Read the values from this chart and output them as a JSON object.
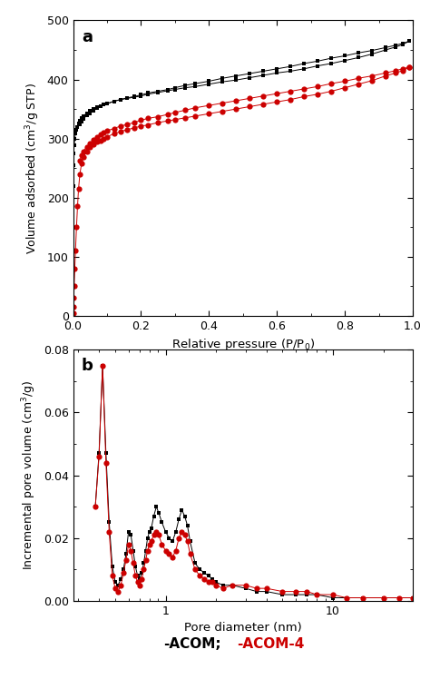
{
  "panel_a_label": "a",
  "panel_b_label": "b",
  "xlabel_a": "Relative pressure (P/P$_0$)",
  "ylabel_a": "Volume adsorbed (cm$^3$/g STP)",
  "xlabel_b": "Pore diameter (nm)",
  "ylabel_b": "Incremental pore volume (cm$^3$/g)",
  "ylim_a": [
    0,
    500
  ],
  "xlim_a": [
    0.0,
    1.0
  ],
  "xlim_b_log": [
    0.28,
    30
  ],
  "ylim_b": [
    0.0,
    0.08
  ],
  "legend_black": "-ACOM",
  "legend_red": "-ACOM-4",
  "legend_color_black": "#000000",
  "legend_color_red": "#cc0000",
  "black_color": "#000000",
  "red_color": "#cc0000",
  "acom_ads_x": [
    0.0005,
    0.001,
    0.002,
    0.003,
    0.005,
    0.007,
    0.01,
    0.013,
    0.016,
    0.02,
    0.025,
    0.03,
    0.04,
    0.05,
    0.06,
    0.07,
    0.08,
    0.09,
    0.1,
    0.12,
    0.14,
    0.16,
    0.18,
    0.2,
    0.22,
    0.25,
    0.28,
    0.3,
    0.33,
    0.36,
    0.4,
    0.44,
    0.48,
    0.52,
    0.56,
    0.6,
    0.64,
    0.68,
    0.72,
    0.76,
    0.8,
    0.84,
    0.88,
    0.92,
    0.95,
    0.97,
    0.99
  ],
  "acom_ads_y": [
    220,
    255,
    275,
    288,
    300,
    308,
    315,
    320,
    325,
    330,
    335,
    338,
    343,
    347,
    350,
    353,
    355,
    357,
    359,
    363,
    366,
    368,
    370,
    372,
    375,
    378,
    381,
    383,
    386,
    388,
    392,
    396,
    399,
    403,
    407,
    411,
    414,
    418,
    423,
    427,
    432,
    437,
    443,
    450,
    455,
    459,
    465
  ],
  "acom_des_x": [
    0.99,
    0.97,
    0.95,
    0.92,
    0.88,
    0.84,
    0.8,
    0.76,
    0.72,
    0.68,
    0.64,
    0.6,
    0.56,
    0.52,
    0.48,
    0.44,
    0.4,
    0.36,
    0.33,
    0.3,
    0.28,
    0.25,
    0.22,
    0.2,
    0.18,
    0.16,
    0.14,
    0.12,
    0.1,
    0.09,
    0.08,
    0.07,
    0.06,
    0.05,
    0.04,
    0.03,
    0.025,
    0.02
  ],
  "acom_des_y": [
    465,
    461,
    458,
    454,
    449,
    445,
    440,
    436,
    431,
    427,
    422,
    418,
    414,
    410,
    406,
    402,
    397,
    393,
    390,
    386,
    383,
    380,
    377,
    374,
    371,
    369,
    366,
    363,
    359,
    357,
    354,
    351,
    347,
    343,
    339,
    333,
    329,
    324
  ],
  "acom4_ads_x": [
    0.0005,
    0.001,
    0.002,
    0.003,
    0.005,
    0.007,
    0.01,
    0.013,
    0.016,
    0.02,
    0.025,
    0.03,
    0.04,
    0.05,
    0.06,
    0.07,
    0.08,
    0.09,
    0.1,
    0.12,
    0.14,
    0.16,
    0.18,
    0.2,
    0.22,
    0.25,
    0.28,
    0.3,
    0.33,
    0.36,
    0.4,
    0.44,
    0.48,
    0.52,
    0.56,
    0.6,
    0.64,
    0.68,
    0.72,
    0.76,
    0.8,
    0.84,
    0.88,
    0.92,
    0.95,
    0.97,
    0.99
  ],
  "acom4_ads_y": [
    5,
    15,
    30,
    50,
    80,
    110,
    150,
    185,
    215,
    240,
    258,
    268,
    278,
    285,
    290,
    294,
    297,
    300,
    303,
    308,
    312,
    315,
    318,
    321,
    323,
    327,
    330,
    332,
    335,
    338,
    342,
    346,
    350,
    354,
    358,
    362,
    366,
    371,
    375,
    380,
    386,
    392,
    398,
    406,
    411,
    415,
    421
  ],
  "acom4_des_x": [
    0.99,
    0.97,
    0.95,
    0.92,
    0.88,
    0.84,
    0.8,
    0.76,
    0.72,
    0.68,
    0.64,
    0.6,
    0.56,
    0.52,
    0.48,
    0.44,
    0.4,
    0.36,
    0.33,
    0.3,
    0.28,
    0.25,
    0.22,
    0.2,
    0.18,
    0.16,
    0.14,
    0.12,
    0.1,
    0.09,
    0.08,
    0.07,
    0.06,
    0.05,
    0.04,
    0.03,
    0.025,
    0.02
  ],
  "acom4_des_y": [
    421,
    418,
    415,
    411,
    406,
    402,
    397,
    393,
    388,
    384,
    380,
    376,
    372,
    368,
    364,
    360,
    356,
    352,
    348,
    344,
    341,
    337,
    334,
    331,
    327,
    324,
    321,
    317,
    313,
    310,
    307,
    303,
    298,
    292,
    286,
    278,
    272,
    262
  ],
  "psd_acom_x": [
    0.38,
    0.4,
    0.42,
    0.44,
    0.46,
    0.48,
    0.5,
    0.52,
    0.54,
    0.56,
    0.58,
    0.6,
    0.62,
    0.64,
    0.66,
    0.68,
    0.7,
    0.72,
    0.74,
    0.76,
    0.78,
    0.8,
    0.82,
    0.85,
    0.88,
    0.91,
    0.95,
    1.0,
    1.05,
    1.1,
    1.15,
    1.2,
    1.25,
    1.3,
    1.35,
    1.4,
    1.5,
    1.6,
    1.7,
    1.8,
    1.9,
    2.0,
    2.2,
    2.5,
    3.0,
    3.5,
    4.0,
    5.0,
    6.0,
    7.0,
    8.0,
    10.0,
    12.0,
    15.0,
    20.0,
    25.0,
    30.0
  ],
  "psd_acom_y": [
    0.03,
    0.047,
    0.075,
    0.047,
    0.025,
    0.011,
    0.006,
    0.005,
    0.007,
    0.01,
    0.015,
    0.022,
    0.021,
    0.016,
    0.011,
    0.008,
    0.007,
    0.009,
    0.012,
    0.016,
    0.02,
    0.022,
    0.023,
    0.027,
    0.03,
    0.028,
    0.025,
    0.022,
    0.02,
    0.019,
    0.022,
    0.026,
    0.029,
    0.027,
    0.024,
    0.019,
    0.012,
    0.01,
    0.009,
    0.008,
    0.007,
    0.006,
    0.005,
    0.005,
    0.004,
    0.003,
    0.003,
    0.002,
    0.002,
    0.002,
    0.002,
    0.001,
    0.001,
    0.001,
    0.001,
    0.001,
    0.001
  ],
  "psd_acom4_x": [
    0.38,
    0.4,
    0.42,
    0.44,
    0.46,
    0.48,
    0.5,
    0.52,
    0.54,
    0.56,
    0.58,
    0.6,
    0.62,
    0.64,
    0.66,
    0.68,
    0.7,
    0.72,
    0.74,
    0.76,
    0.78,
    0.8,
    0.82,
    0.85,
    0.88,
    0.91,
    0.95,
    1.0,
    1.05,
    1.1,
    1.15,
    1.2,
    1.25,
    1.3,
    1.35,
    1.4,
    1.5,
    1.6,
    1.7,
    1.8,
    1.9,
    2.0,
    2.2,
    2.5,
    3.0,
    3.5,
    4.0,
    5.0,
    6.0,
    7.0,
    8.0,
    10.0,
    12.0,
    15.0,
    20.0,
    25.0,
    30.0
  ],
  "psd_acom4_y": [
    0.03,
    0.046,
    0.075,
    0.044,
    0.022,
    0.008,
    0.004,
    0.003,
    0.005,
    0.009,
    0.013,
    0.018,
    0.016,
    0.012,
    0.008,
    0.006,
    0.005,
    0.007,
    0.01,
    0.013,
    0.016,
    0.018,
    0.019,
    0.021,
    0.022,
    0.021,
    0.018,
    0.016,
    0.015,
    0.014,
    0.016,
    0.02,
    0.022,
    0.021,
    0.019,
    0.015,
    0.01,
    0.008,
    0.007,
    0.006,
    0.006,
    0.005,
    0.004,
    0.005,
    0.005,
    0.004,
    0.004,
    0.003,
    0.003,
    0.003,
    0.002,
    0.002,
    0.001,
    0.001,
    0.001,
    0.001,
    0.001
  ]
}
